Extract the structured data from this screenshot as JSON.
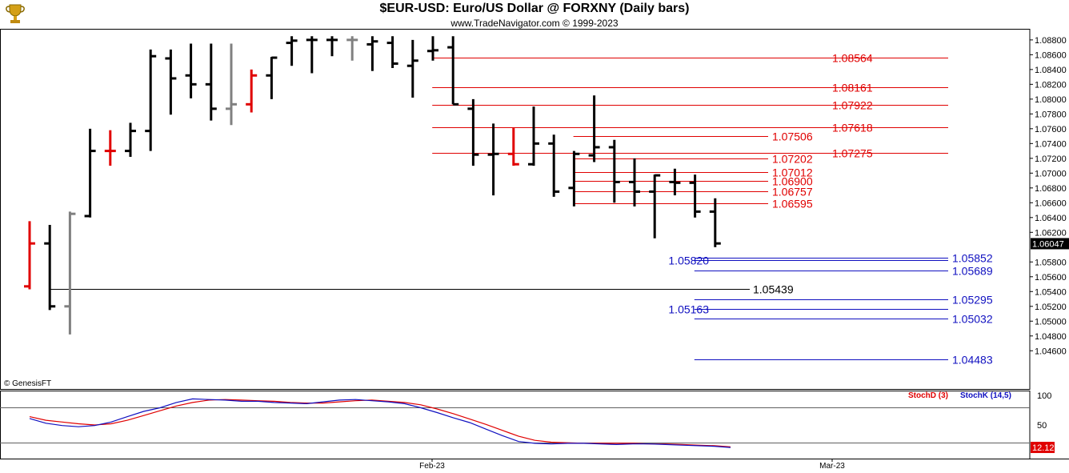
{
  "title": "$EUR-USD:  Euro/US Dollar @ FORXNY  (Daily bars)",
  "subtitle": "www.TradeNavigator.com © 1999-2023",
  "credit": "© GenesisFT",
  "logo_icon": "trophy-icon",
  "colors": {
    "price_up": "#000000",
    "price_highlight": "#e00000",
    "price_gray": "#808080",
    "retracement_red": "#e00000",
    "projection_blue": "#1010c0",
    "stoch_k": "#1010c0",
    "stoch_d": "#e00000"
  },
  "chart_data": [
    {
      "type": "ohlc",
      "title": "$EUR-USD:  Euro/US Dollar @ FORXNY  (Daily bars)",
      "ylim": [
        1.043,
        1.0895
      ],
      "yticks": [
        "1.08800",
        "1.08600",
        "1.08400",
        "1.08200",
        "1.08000",
        "1.07800",
        "1.07600",
        "1.07400",
        "1.07200",
        "1.07000",
        "1.06800",
        "1.06600",
        "1.06400",
        "1.06200",
        "1.05800",
        "1.05600",
        "1.05400",
        "1.05200",
        "1.05000",
        "1.04800",
        "1.04600"
      ],
      "x_labels": [
        "Feb-23",
        "Mar-23"
      ],
      "last_price_label": "1.06047",
      "bars": [
        {
          "o": 1.0547,
          "h": 1.0635,
          "l": 1.0543,
          "c": 1.0605,
          "color": "red"
        },
        {
          "o": 1.0605,
          "h": 1.063,
          "l": 1.0515,
          "c": 1.052,
          "color": "black"
        },
        {
          "o": 1.052,
          "h": 1.0648,
          "l": 1.0482,
          "c": 1.0645,
          "color": "gray"
        },
        {
          "o": 1.0642,
          "h": 1.076,
          "l": 1.064,
          "c": 1.073,
          "color": "black"
        },
        {
          "o": 1.073,
          "h": 1.0758,
          "l": 1.071,
          "c": 1.073,
          "color": "red"
        },
        {
          "o": 1.073,
          "h": 1.0768,
          "l": 1.0722,
          "c": 1.0757,
          "color": "black"
        },
        {
          "o": 1.0757,
          "h": 1.0867,
          "l": 1.073,
          "c": 1.0858,
          "color": "black"
        },
        {
          "o": 1.0855,
          "h": 1.0867,
          "l": 1.0779,
          "c": 1.0828,
          "color": "black"
        },
        {
          "o": 1.0832,
          "h": 1.0875,
          "l": 1.0801,
          "c": 1.082,
          "color": "black"
        },
        {
          "o": 1.082,
          "h": 1.0875,
          "l": 1.0771,
          "c": 1.0787,
          "color": "black"
        },
        {
          "o": 1.0787,
          "h": 1.0875,
          "l": 1.0765,
          "c": 1.0793,
          "color": "gray"
        },
        {
          "o": 1.0793,
          "h": 1.084,
          "l": 1.0782,
          "c": 1.0832,
          "color": "red"
        },
        {
          "o": 1.0832,
          "h": 1.0857,
          "l": 1.08,
          "c": 1.0856,
          "color": "black"
        },
        {
          "o": 1.0876,
          "h": 1.0885,
          "l": 1.0845,
          "c": 1.0879,
          "color": "black"
        },
        {
          "o": 1.088,
          "h": 1.0885,
          "l": 1.0835,
          "c": 1.088,
          "color": "black"
        },
        {
          "o": 1.088,
          "h": 1.0885,
          "l": 1.0858,
          "c": 1.088,
          "color": "black"
        },
        {
          "o": 1.088,
          "h": 1.0885,
          "l": 1.0852,
          "c": 1.088,
          "color": "gray"
        },
        {
          "o": 1.0874,
          "h": 1.0885,
          "l": 1.0838,
          "c": 1.0878,
          "color": "black"
        },
        {
          "o": 1.0876,
          "h": 1.0885,
          "l": 1.0842,
          "c": 1.0848,
          "color": "black"
        },
        {
          "o": 1.0845,
          "h": 1.088,
          "l": 1.0802,
          "c": 1.0852,
          "color": "black"
        },
        {
          "o": 1.0865,
          "h": 1.0885,
          "l": 1.0852,
          "c": 1.0866,
          "color": "black"
        },
        {
          "o": 1.087,
          "h": 1.0885,
          "l": 1.0793,
          "c": 1.0793,
          "color": "black"
        },
        {
          "o": 1.0787,
          "h": 1.08,
          "l": 1.071,
          "c": 1.0725,
          "color": "black"
        },
        {
          "o": 1.0725,
          "h": 1.0767,
          "l": 1.067,
          "c": 1.0726,
          "color": "black"
        },
        {
          "o": 1.0726,
          "h": 1.0762,
          "l": 1.071,
          "c": 1.0712,
          "color": "red"
        },
        {
          "o": 1.0712,
          "h": 1.079,
          "l": 1.071,
          "c": 1.074,
          "color": "black"
        },
        {
          "o": 1.074,
          "h": 1.0752,
          "l": 1.0668,
          "c": 1.0675,
          "color": "black"
        },
        {
          "o": 1.068,
          "h": 1.073,
          "l": 1.0655,
          "c": 1.0726,
          "color": "black"
        },
        {
          "o": 1.0724,
          "h": 1.0805,
          "l": 1.0715,
          "c": 1.0735,
          "color": "black"
        },
        {
          "o": 1.0735,
          "h": 1.0745,
          "l": 1.066,
          "c": 1.0688,
          "color": "black"
        },
        {
          "o": 1.0688,
          "h": 1.072,
          "l": 1.0655,
          "c": 1.0675,
          "color": "black"
        },
        {
          "o": 1.0675,
          "h": 1.0698,
          "l": 1.0612,
          "c": 1.0697,
          "color": "black"
        },
        {
          "o": 1.0688,
          "h": 1.0706,
          "l": 1.067,
          "c": 1.0687,
          "color": "black"
        },
        {
          "o": 1.0687,
          "h": 1.0698,
          "l": 1.064,
          "c": 1.0648,
          "color": "black"
        },
        {
          "o": 1.0648,
          "h": 1.0666,
          "l": 1.06,
          "c": 1.0605,
          "color": "black"
        }
      ],
      "levels": [
        {
          "value": 1.08564,
          "label": "1.08564",
          "color": "red",
          "from_bar": 21,
          "label_side": "right"
        },
        {
          "value": 1.08161,
          "label": "1.08161",
          "color": "red",
          "from_bar": 21,
          "label_side": "right"
        },
        {
          "value": 1.07922,
          "label": "1.07922",
          "color": "red",
          "from_bar": 21,
          "label_side": "right"
        },
        {
          "value": 1.07618,
          "label": "1.07618",
          "color": "red",
          "from_bar": 21,
          "label_side": "right"
        },
        {
          "value": 1.07506,
          "label": "1.07506",
          "color": "red",
          "from_bar": 28,
          "label_side": "mid"
        },
        {
          "value": 1.07275,
          "label": "1.07275",
          "color": "red",
          "from_bar": 21,
          "label_side": "right"
        },
        {
          "value": 1.07202,
          "label": "1.07202",
          "color": "red",
          "from_bar": 28,
          "label_side": "mid"
        },
        {
          "value": 1.07012,
          "label": "1.07012",
          "color": "red",
          "from_bar": 28,
          "label_side": "mid"
        },
        {
          "value": 1.069,
          "label": "1.06900",
          "color": "red",
          "from_bar": 28,
          "label_side": "mid"
        },
        {
          "value": 1.06757,
          "label": "1.06757",
          "color": "red",
          "from_bar": 28,
          "label_side": "mid"
        },
        {
          "value": 1.06595,
          "label": "1.06595",
          "color": "red",
          "from_bar": 28,
          "label_side": "mid"
        },
        {
          "value": 1.05852,
          "label": "1.05852",
          "color": "blue",
          "from_bar": 34,
          "label_side": "right"
        },
        {
          "value": 1.0582,
          "label": "1.05820",
          "color": "blue",
          "from_bar": 34,
          "label_side": "left"
        },
        {
          "value": 1.05689,
          "label": "1.05689",
          "color": "blue",
          "from_bar": 34,
          "label_side": "right"
        },
        {
          "value": 1.05439,
          "label": "1.05439",
          "color": "black",
          "from_bar": 2,
          "label_side": "mid"
        },
        {
          "value": 1.05295,
          "label": "1.05295",
          "color": "blue",
          "from_bar": 34,
          "label_side": "right"
        },
        {
          "value": 1.05163,
          "label": "1.05163",
          "color": "blue",
          "from_bar": 34,
          "label_side": "left"
        },
        {
          "value": 1.05032,
          "label": "1.05032",
          "color": "blue",
          "from_bar": 34,
          "label_side": "right"
        },
        {
          "value": 1.04483,
          "label": "1.04483",
          "color": "blue",
          "from_bar": 34,
          "label_side": "right"
        }
      ]
    },
    {
      "type": "line",
      "title": "",
      "ylim": [
        0,
        100
      ],
      "yticks": [
        "100",
        "50"
      ],
      "last_value_label": "12.12",
      "series": [
        {
          "name": "StochD (3)",
          "values": [
            64,
            58,
            55,
            52,
            50,
            52,
            58,
            66,
            74,
            82,
            88,
            92,
            93,
            92,
            91,
            90,
            88,
            87,
            87,
            89,
            91,
            92,
            90,
            88,
            84,
            77,
            69,
            60,
            51,
            41,
            31,
            24,
            21,
            20,
            19,
            19,
            19,
            19,
            18,
            18,
            17,
            16,
            15,
            13
          ]
        },
        {
          "name": "StochK (14,5)",
          "values": [
            61,
            53,
            49,
            47,
            49,
            55,
            64,
            73,
            79,
            88,
            94,
            93,
            92,
            90,
            90,
            88,
            87,
            86,
            89,
            92,
            93,
            91,
            89,
            86,
            79,
            71,
            62,
            54,
            43,
            32,
            22,
            19,
            18,
            19,
            19,
            18,
            17,
            18,
            18,
            17,
            16,
            15,
            14,
            12
          ]
        }
      ]
    }
  ]
}
